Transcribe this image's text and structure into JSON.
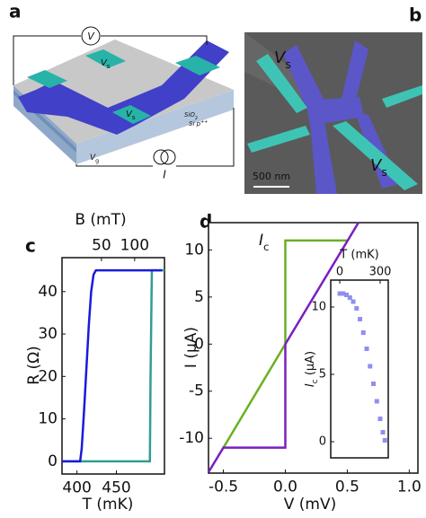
{
  "panel_labels": [
    "a",
    "b",
    "c",
    "d"
  ],
  "figure_a": {
    "voltmeter": "V",
    "probe_top": [
      "V",
      "s"
    ],
    "probe_bottom": [
      "V",
      "s"
    ],
    "oxide": [
      "SiO",
      "2"
    ],
    "substrate": [
      "Si p",
      "++"
    ],
    "gate": [
      "V",
      "g"
    ],
    "current": "I"
  },
  "figure_b": {
    "probe_top": [
      "V",
      "s"
    ],
    "probe_bottom": [
      "V",
      "s"
    ],
    "scale_bar": "500 nm"
  },
  "chart_data": [
    {
      "type": "line",
      "xlabel": "T (mK)",
      "ylabel": "R (Ω)",
      "x2label": "B (mT)",
      "xlim": [
        381,
        511
      ],
      "xticks": [
        400,
        450
      ],
      "x2lim": [
        -9.5,
        145
      ],
      "x2ticks": [
        50,
        100
      ],
      "ylim": [
        -3,
        48
      ],
      "yticks": [
        0,
        10,
        20,
        30,
        40
      ],
      "series": [
        {
          "color": "#339c93",
          "axis": "x2",
          "x": [
            -9,
            123,
            124,
            126,
            145
          ],
          "values": [
            0,
            0,
            20,
            45,
            45
          ]
        },
        {
          "color": "#1a1adc",
          "axis": "x",
          "x": [
            381,
            404,
            406,
            409,
            412,
            415,
            418,
            421,
            424,
            508
          ],
          "values": [
            0,
            0,
            3,
            12,
            22,
            32,
            40,
            44,
            45,
            45
          ]
        }
      ]
    },
    {
      "type": "line",
      "xlabel": "V (mV)",
      "ylabel": "I (µA)",
      "annotation": [
        "I",
        "c"
      ],
      "xlim": [
        -0.62,
        1.07
      ],
      "xticks": [
        -0.5,
        {
          "value": 0,
          "label": "0.0"
        },
        0.5,
        {
          "value": 1,
          "label": "1.0"
        }
      ],
      "ylim": [
        -13.7,
        12.9
      ],
      "yticks": [
        -10,
        -5,
        0,
        5,
        10
      ],
      "series": [
        {
          "color": "#6ab023",
          "x": [
            -0.5,
            0,
            0,
            0.5
          ],
          "values": [
            -11,
            0,
            11,
            11
          ]
        },
        {
          "color": "#7a1fc0",
          "x": [
            -0.62,
            -0.5,
            0,
            0,
            0.59
          ],
          "values": [
            -13.6,
            -11,
            -11,
            0,
            12.9
          ]
        }
      ]
    },
    {
      "type": "scatter",
      "xlabel": "T (mK)",
      "ylabel": [
        "I",
        "c",
        " (µA)"
      ],
      "xtick_side": "top",
      "xlim": [
        -67,
        360
      ],
      "xticks": [
        0,
        300
      ],
      "ylim": [
        -1.2,
        12
      ],
      "yticks": [
        0,
        5,
        10
      ],
      "series": [
        {
          "color": "#8f8ff0",
          "x": [
            0,
            25,
            50,
            75,
            100,
            125,
            150,
            175,
            200,
            225,
            250,
            275,
            300,
            320,
            335
          ],
          "values": [
            11,
            11,
            10.9,
            10.7,
            10.4,
            9.9,
            9.1,
            8.1,
            6.9,
            5.6,
            4.3,
            3,
            1.7,
            0.7,
            0.1
          ]
        }
      ]
    }
  ]
}
